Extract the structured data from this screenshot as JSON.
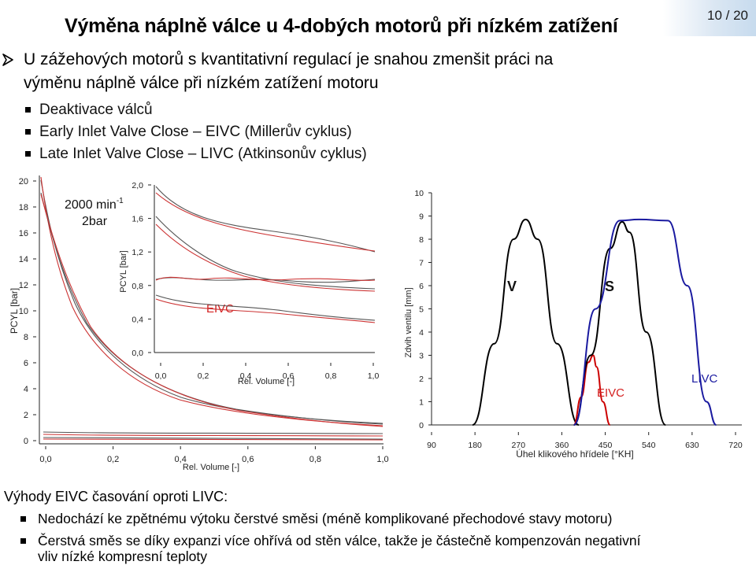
{
  "header": {
    "title": "Výměna náplně válce u 4-dobých motorů při nízkém zatížení",
    "page_number": "10 / 20"
  },
  "intro": {
    "line1": "U zážehových motorů s kvantitativní regulací je snahou zmenšit práci na",
    "line2": "výměnu náplně válce při nízkém zatížení motoru",
    "items": [
      "Deaktivace válců",
      "Early Inlet Valve Close – EIVC (Millerův cyklus)",
      "Late Inlet Valve Close – LIVC (Atkinsonův cyklus)"
    ]
  },
  "chart_pv": {
    "ylabel": "PCYL [bar]",
    "xlabel": "Rel. Volume [-]",
    "y_ticks": [
      "0",
      "2",
      "4",
      "6",
      "8",
      "10",
      "12",
      "14",
      "16",
      "18",
      "20"
    ],
    "x_ticks": [
      "0,0",
      "0,2",
      "0,4",
      "0,6",
      "0,8",
      "1,0"
    ],
    "annotation_speed": "2000 min",
    "annotation_sup": "-1",
    "annotation_load": "2bar",
    "inset": {
      "ylabel": "PCYL [bar]",
      "xlabel": "Rel. Volume [-]",
      "y_ticks": [
        "0,0",
        "0,4",
        "0,8",
        "1,2",
        "1,6",
        "2,0"
      ],
      "x_ticks": [
        "0,0",
        "0,2",
        "0,4",
        "0,6",
        "0,8",
        "1,0"
      ],
      "label": "EIVC"
    }
  },
  "chart_lift": {
    "ylabel": "Zdvih ventilu [mm]",
    "xlabel": "Úhel klikového hřídele [°KH]",
    "y_ticks": [
      "0",
      "1",
      "2",
      "3",
      "4",
      "5",
      "6",
      "7",
      "8",
      "9",
      "10"
    ],
    "x_ticks": [
      "90",
      "180",
      "270",
      "360",
      "450",
      "540",
      "630",
      "720"
    ],
    "label_v": "V",
    "label_s": "S",
    "label_eivc": "EIVC",
    "label_livc": "LIVC"
  },
  "chart_data": [
    {
      "type": "line",
      "xlabel": "Rel. Volume [-]",
      "ylabel": "PCYL [bar]",
      "xlim": [
        0,
        1
      ],
      "ylim": [
        0,
        20
      ],
      "series": [
        {
          "color": "#555555",
          "x": [
            0.02,
            0.05,
            0.1,
            0.2,
            0.3,
            0.45,
            0.6,
            0.8,
            1.0
          ],
          "y": [
            18.5,
            16,
            13.5,
            9,
            6,
            4,
            3.1,
            2.2,
            1.8
          ]
        },
        {
          "color": "#cc3333",
          "x": [
            0.02,
            0.05,
            0.1,
            0.2,
            0.3,
            0.45,
            0.6,
            0.8,
            1.0
          ],
          "y": [
            19,
            16.5,
            13,
            8.5,
            5.7,
            3.8,
            3.0,
            2.1,
            1.7
          ]
        }
      ]
    },
    {
      "type": "line",
      "xlabel": "Úhel klikového hřídele [°KH]",
      "ylabel": "Zdvih ventilu [mm]",
      "xlim": [
        90,
        720
      ],
      "ylim": [
        0,
        10
      ],
      "series": [
        {
          "name": "V",
          "color": "#000000",
          "x": [
            175,
            220,
            260,
            285,
            310,
            350,
            395
          ],
          "y": [
            0,
            3.5,
            8.0,
            8.85,
            8.0,
            3.5,
            0
          ]
        },
        {
          "name": "EIVC",
          "color": "#cc0000",
          "x": [
            385,
            400,
            415,
            425,
            432,
            445,
            460
          ],
          "y": [
            0,
            1.2,
            2.7,
            3.0,
            2.5,
            1.0,
            0
          ]
        },
        {
          "name": "S",
          "color": "#000000",
          "x": [
            385,
            420,
            460,
            485,
            500,
            535,
            575
          ],
          "y": [
            0,
            3.0,
            7.6,
            8.75,
            8.3,
            4.0,
            0
          ]
        },
        {
          "name": "LIVC",
          "color": "#1a1aa0",
          "x": [
            385,
            430,
            480,
            520,
            580,
            620,
            660,
            680
          ],
          "y": [
            0,
            5.0,
            8.8,
            8.85,
            8.8,
            6.0,
            1.0,
            0
          ]
        }
      ]
    }
  ],
  "footer": {
    "heading": "Výhody EIVC časování oproti LIVC:",
    "items": [
      "Nedochází ke zpětnému výtoku čerstvé směsi (méně komplikované přechodové stavy motoru)",
      "Čerstvá směs se díky expanzi více ohřívá od stěn válce, takže je částečně kompenzován negativní",
      "vliv nízké kompresní teploty"
    ]
  }
}
